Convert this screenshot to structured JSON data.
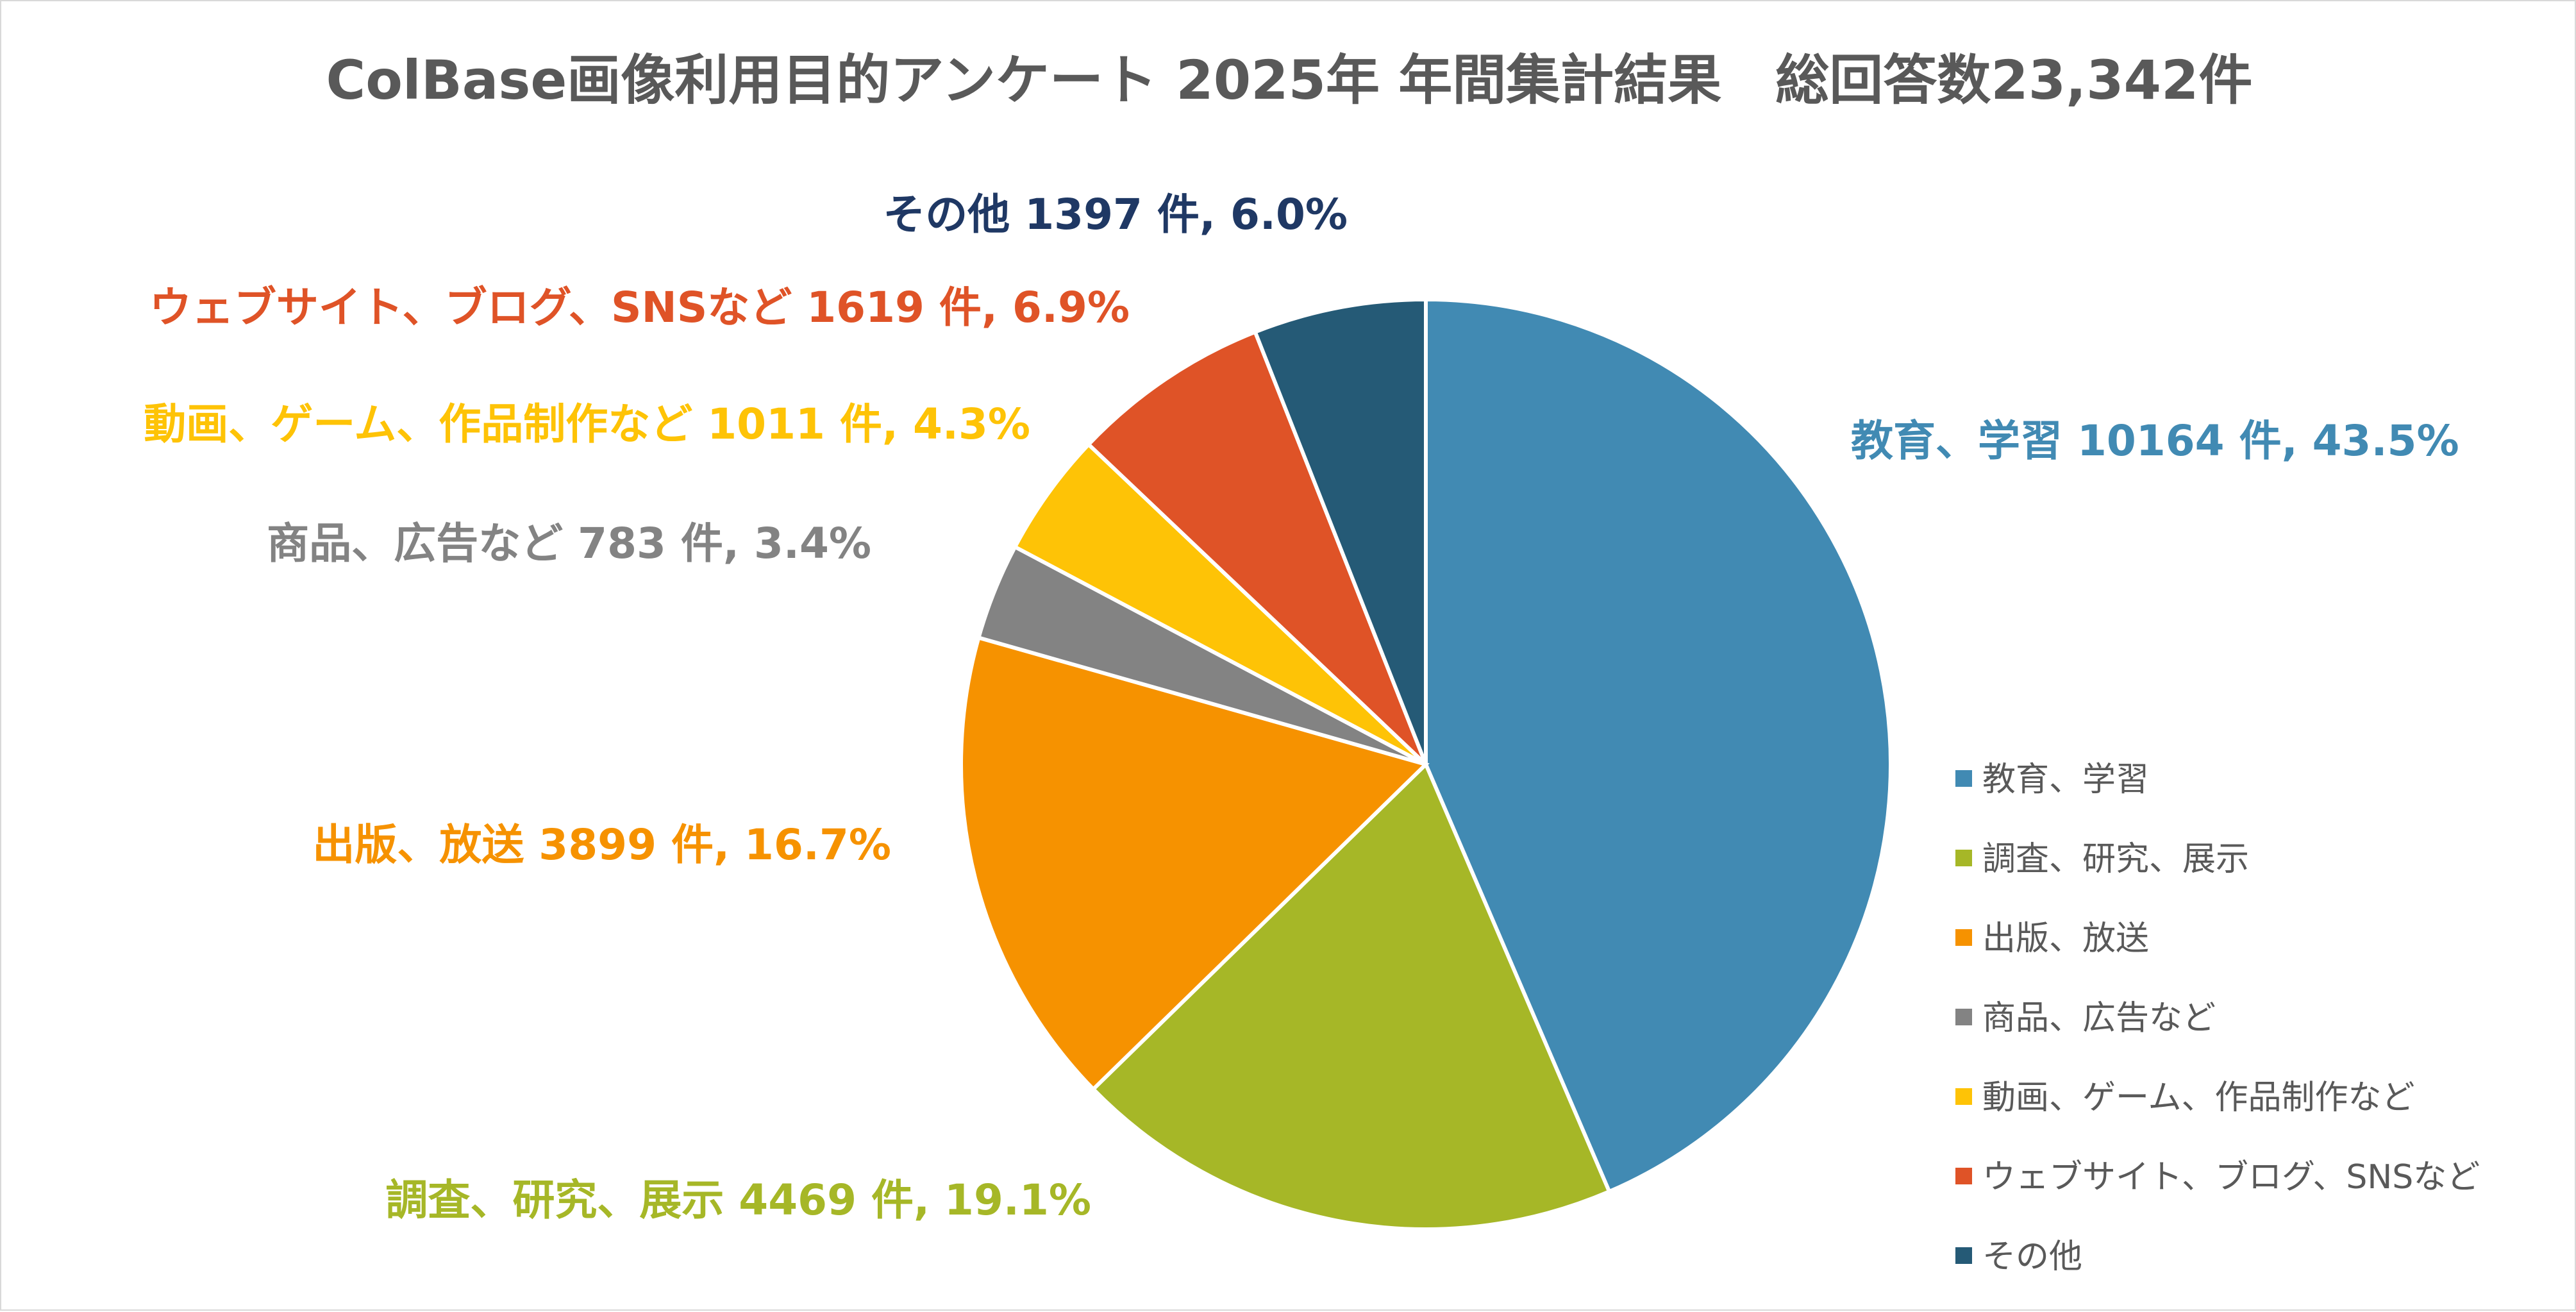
{
  "chart_data": {
    "type": "pie",
    "title": "ColBase画像利用目的アンケート 2025年 年間集計結果　総回答数23,342件",
    "legend_position": "right",
    "slices": [
      {
        "name": "教育、学習",
        "value": 10164,
        "percent_label": "43.5%",
        "label": "教育、学習 10164 件, 43.5%",
        "color": "#418AB3"
      },
      {
        "name": "調査、研究、展示",
        "value": 4469,
        "percent_label": "19.1%",
        "label": "調査、研究、展示 4469 件, 19.1%",
        "color": "#A6B727"
      },
      {
        "name": "出版、放送",
        "value": 3899,
        "percent_label": "16.7%",
        "label": "出版、放送 3899 件, 16.7%",
        "color": "#F69200"
      },
      {
        "name": "商品、広告など",
        "value": 783,
        "percent_label": "3.4%",
        "label": "商品、広告など 783 件, 3.4%",
        "color": "#838383"
      },
      {
        "name": "動画、ゲーム、作品制作など",
        "value": 1011,
        "percent_label": "4.3%",
        "label": "動画、ゲーム、作品制作など 1011 件, 4.3%",
        "color": "#FEC306"
      },
      {
        "name": "ウェブサイト、ブログ、SNSなど",
        "value": 1619,
        "percent_label": "6.9%",
        "label": "ウェブサイト、ブログ、SNSなど 1619 件, 6.9%",
        "color": "#DF5327"
      },
      {
        "name": "その他",
        "value": 1397,
        "percent_label": "6.0%",
        "label": "その他 1397 件, 6.0%",
        "color": "#255A76"
      }
    ],
    "label_colors": [
      "#418AB3",
      "#A6B727",
      "#F69200",
      "#838383",
      "#FEC306",
      "#DF5327",
      "#1F3864"
    ]
  }
}
